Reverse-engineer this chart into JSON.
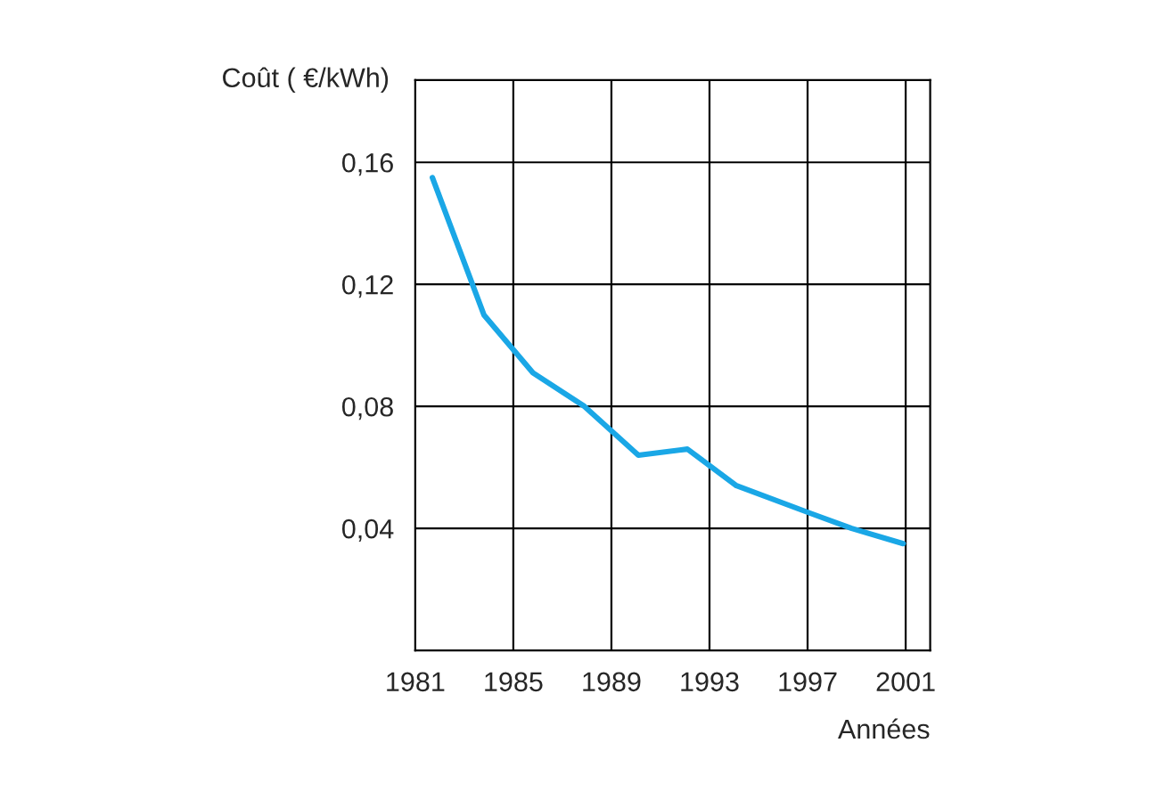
{
  "chart_data": {
    "type": "line",
    "ylabel": "Coût ( €/kWh)",
    "xlabel": "Années",
    "x": [
      1981.7,
      1983.8,
      1985.8,
      1987.9,
      1990.1,
      1992.1,
      1994.1,
      1997.1,
      1998.8,
      2000.9
    ],
    "series": [
      {
        "color": "#1aa7e6",
        "values": [
          0.155,
          0.11,
          0.091,
          0.08,
          0.064,
          0.066,
          0.054,
          0.045,
          0.04,
          0.035
        ]
      }
    ],
    "xlim": [
      1981,
      2002
    ],
    "ylim": [
      0,
      0.187
    ],
    "xticks": [
      1981,
      1985,
      1989,
      1993,
      1997,
      2001
    ],
    "yticks": [
      {
        "value": 0.04,
        "label": "0,04"
      },
      {
        "value": 0.08,
        "label": "0,08"
      },
      {
        "value": 0.12,
        "label": "0,12"
      },
      {
        "value": 0.16,
        "label": "0,16"
      }
    ],
    "grid": true,
    "marker": "none",
    "line_style": "solid",
    "legend": false
  }
}
